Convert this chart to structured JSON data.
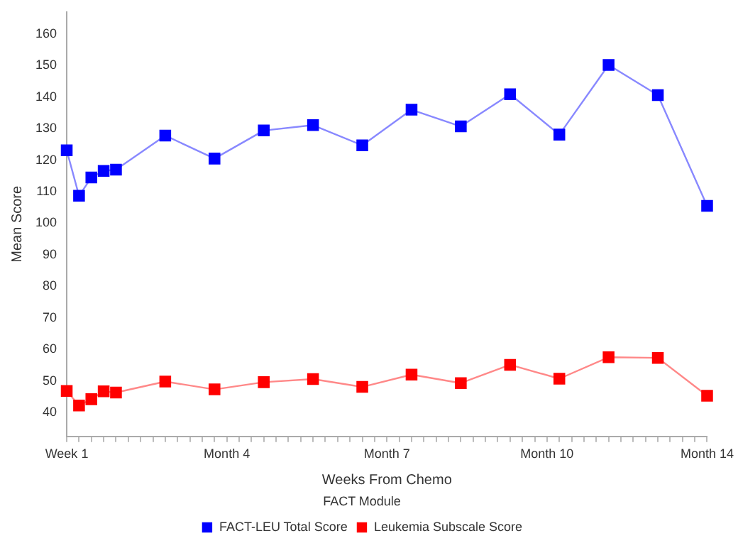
{
  "chart_data": {
    "type": "line",
    "xlabel": "Weeks From Chemo",
    "ylabel": "Mean Score",
    "legend_title": "FACT Module",
    "legend": "bottom",
    "marker": "square",
    "line_style": "solid",
    "grid": false,
    "categories": [
      "Week 1",
      null,
      null,
      null,
      null,
      null,
      null,
      null,
      null,
      null,
      null,
      null,
      null,
      "Month 4",
      null,
      null,
      null,
      null,
      null,
      null,
      null,
      null,
      null,
      null,
      null,
      null,
      "Month 7",
      null,
      null,
      null,
      null,
      null,
      null,
      null,
      null,
      null,
      null,
      null,
      null,
      "Month 10",
      null,
      null,
      null,
      null,
      null,
      null,
      null,
      null,
      null,
      null,
      null,
      null,
      "Month 14"
    ],
    "ylim": [
      32.4,
      167
    ],
    "yticks": [
      40,
      50,
      60,
      70,
      80,
      90,
      100,
      110,
      120,
      130,
      140,
      150,
      160
    ],
    "series": [
      {
        "name": "FACT-LEU Total Score",
        "color": "#0000ff",
        "values": [
          123.1,
          108.7,
          114.5,
          116.6,
          117,
          null,
          null,
          null,
          127.8,
          null,
          null,
          null,
          120.5,
          null,
          null,
          null,
          129.4,
          null,
          null,
          null,
          131.1,
          null,
          null,
          null,
          124.7,
          null,
          null,
          null,
          136,
          null,
          null,
          null,
          130.7,
          null,
          null,
          null,
          140.9,
          null,
          null,
          null,
          128.1,
          null,
          null,
          null,
          150.2,
          null,
          null,
          null,
          140.6,
          null,
          null,
          null,
          105.5
        ]
      },
      {
        "name": "Leukemia Subscale Score",
        "color": "#ff0000",
        "values": [
          46.8,
          42.2,
          44.2,
          46.7,
          46.3,
          null,
          null,
          null,
          49.8,
          null,
          null,
          null,
          47.3,
          null,
          null,
          null,
          49.6,
          null,
          null,
          null,
          50.6,
          null,
          null,
          null,
          48.1,
          null,
          null,
          null,
          52,
          null,
          null,
          null,
          49.3,
          null,
          null,
          null,
          55.1,
          null,
          null,
          null,
          50.7,
          null,
          null,
          null,
          57.5,
          null,
          null,
          null,
          57.3,
          null,
          null,
          null,
          45.3
        ]
      }
    ]
  }
}
